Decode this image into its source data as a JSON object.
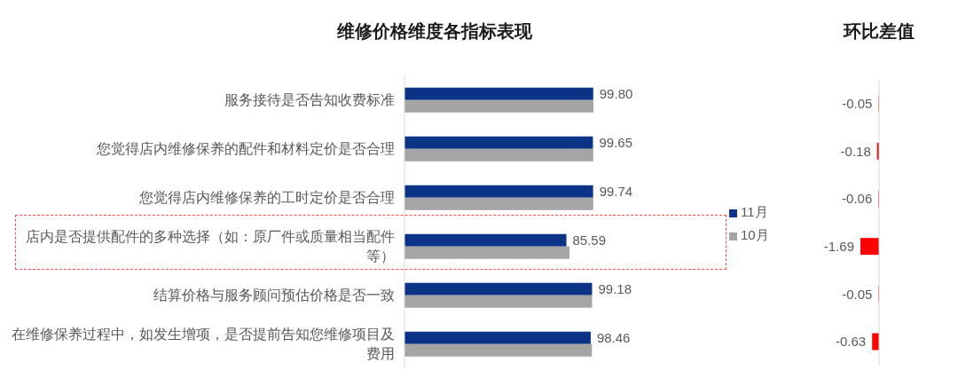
{
  "chart_data": [
    {
      "type": "bar",
      "title": "维修价格维度各指标表现",
      "orientation": "horizontal",
      "categories": [
        "服务接待是否告知收费标准",
        "您觉得店内维修保养的配件和材料定价是否合理",
        "您觉得店内维修保养的工时定价是否合理",
        "店内是否提供配件的多种选择（如：原厂件或质量相当配件等）",
        "结算价格与服务顾问预估价格是否一致",
        "在维修保养过程中，如发生增项，是否提前告知您维修项目及费用"
      ],
      "series": [
        {
          "name": "11月",
          "color": "#0b3486",
          "values": [
            99.8,
            99.65,
            99.74,
            85.59,
            99.18,
            98.46
          ],
          "value_labels": [
            "99.80",
            "99.65",
            "99.74",
            "85.59",
            "99.18",
            "98.46"
          ]
        },
        {
          "name": "10月",
          "color": "#a5a5a5",
          "values": [
            99.9,
            99.8,
            99.8,
            87.3,
            99.2,
            99.1
          ]
        }
      ],
      "legend": "right"
    },
    {
      "type": "bar",
      "title": "环比差值",
      "orientation": "horizontal",
      "categories": [
        null,
        null,
        null,
        null,
        null,
        null
      ],
      "values": [
        -0.05,
        -0.18,
        -0.06,
        -1.69,
        -0.05,
        -0.63
      ],
      "color": "#ff0000",
      "data_labels": true
    }
  ]
}
